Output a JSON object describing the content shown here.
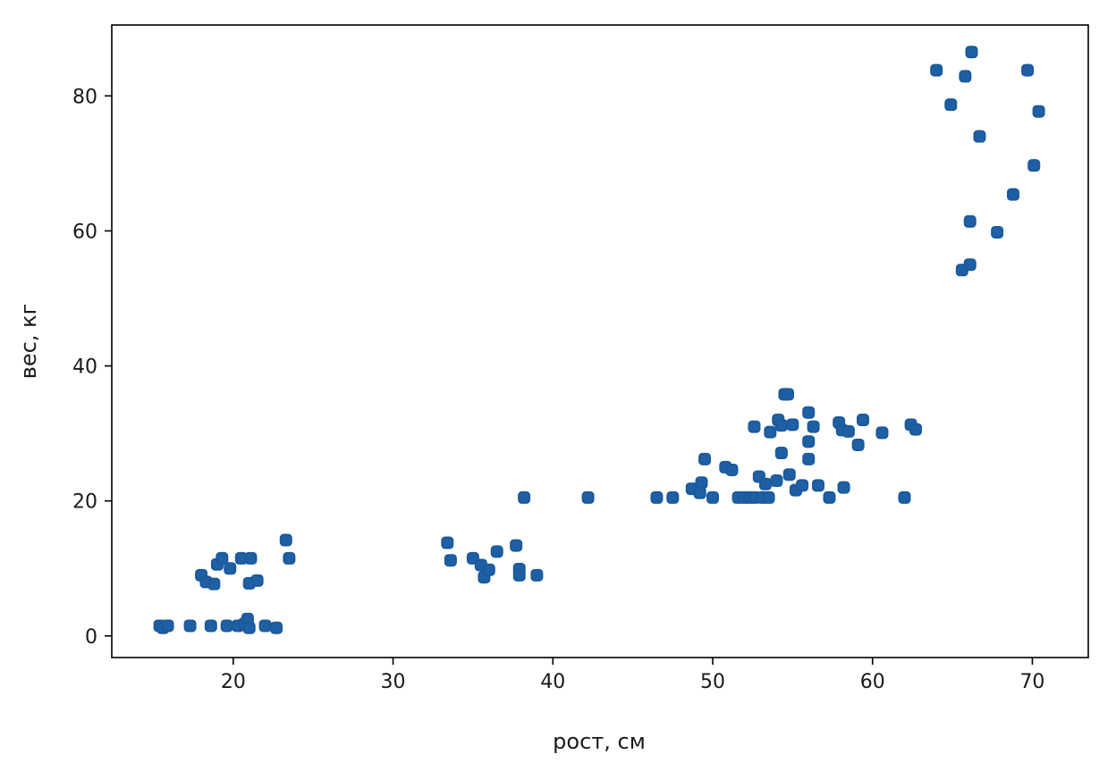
{
  "chart_data": {
    "type": "scatter",
    "title": "",
    "xlabel": "рост, см",
    "ylabel": "вес, кг",
    "xlim": [
      12.4,
      73.5
    ],
    "ylim": [
      -3.2,
      90.5
    ],
    "xticks": [
      20,
      30,
      40,
      50,
      60,
      70
    ],
    "yticks": [
      0,
      20,
      40,
      60,
      80
    ],
    "grid": false,
    "legend": "none",
    "series": [
      {
        "color": "#1f5fa3",
        "points": [
          [
            15.4,
            1.5
          ],
          [
            15.6,
            1.2
          ],
          [
            15.9,
            1.5
          ],
          [
            17.3,
            1.5
          ],
          [
            18.6,
            1.5
          ],
          [
            19.6,
            1.5
          ],
          [
            20.3,
            1.5
          ],
          [
            20.7,
            1.8
          ],
          [
            20.9,
            2.5
          ],
          [
            21.0,
            1.2
          ],
          [
            22.0,
            1.5
          ],
          [
            22.7,
            1.2
          ],
          [
            18.0,
            9.0
          ],
          [
            18.3,
            8.0
          ],
          [
            18.8,
            7.7
          ],
          [
            19.0,
            10.6
          ],
          [
            19.3,
            11.5
          ],
          [
            19.8,
            10.0
          ],
          [
            20.5,
            11.5
          ],
          [
            21.0,
            7.8
          ],
          [
            21.1,
            11.5
          ],
          [
            21.5,
            8.2
          ],
          [
            23.3,
            14.2
          ],
          [
            23.5,
            11.5
          ],
          [
            33.4,
            13.8
          ],
          [
            33.6,
            11.2
          ],
          [
            35.0,
            11.5
          ],
          [
            35.5,
            10.5
          ],
          [
            35.7,
            8.7
          ],
          [
            36.0,
            9.8
          ],
          [
            36.5,
            12.5
          ],
          [
            37.7,
            13.4
          ],
          [
            37.9,
            9.9
          ],
          [
            37.9,
            9.0
          ],
          [
            38.2,
            20.5
          ],
          [
            39.0,
            9.0
          ],
          [
            42.2,
            20.5
          ],
          [
            46.5,
            20.5
          ],
          [
            47.5,
            20.5
          ],
          [
            48.7,
            21.8
          ],
          [
            49.2,
            21.2
          ],
          [
            49.3,
            22.7
          ],
          [
            49.5,
            26.2
          ],
          [
            50.0,
            20.5
          ],
          [
            50.8,
            25.0
          ],
          [
            51.2,
            24.6
          ],
          [
            51.6,
            20.5
          ],
          [
            52.0,
            20.5
          ],
          [
            52.3,
            20.5
          ],
          [
            52.6,
            20.5
          ],
          [
            52.6,
            31.0
          ],
          [
            52.9,
            23.6
          ],
          [
            53.1,
            20.5
          ],
          [
            53.3,
            22.5
          ],
          [
            53.5,
            20.5
          ],
          [
            53.6,
            30.2
          ],
          [
            54.0,
            23.0
          ],
          [
            54.1,
            32.0
          ],
          [
            54.3,
            31.2
          ],
          [
            54.3,
            27.1
          ],
          [
            54.5,
            35.8
          ],
          [
            54.7,
            35.8
          ],
          [
            54.8,
            23.9
          ],
          [
            55.0,
            31.3
          ],
          [
            55.2,
            21.6
          ],
          [
            55.6,
            22.3
          ],
          [
            56.0,
            33.1
          ],
          [
            56.0,
            28.8
          ],
          [
            56.0,
            26.2
          ],
          [
            56.3,
            31.0
          ],
          [
            56.6,
            22.3
          ],
          [
            57.3,
            20.5
          ],
          [
            57.9,
            31.6
          ],
          [
            58.1,
            30.5
          ],
          [
            58.2,
            22.0
          ],
          [
            58.5,
            30.3
          ],
          [
            59.1,
            28.3
          ],
          [
            59.4,
            32.0
          ],
          [
            60.6,
            30.1
          ],
          [
            62.0,
            20.5
          ],
          [
            62.4,
            31.3
          ],
          [
            62.7,
            30.6
          ],
          [
            64.0,
            83.8
          ],
          [
            64.9,
            78.7
          ],
          [
            65.6,
            54.2
          ],
          [
            65.8,
            82.9
          ],
          [
            66.1,
            55.0
          ],
          [
            66.1,
            61.4
          ],
          [
            66.2,
            86.5
          ],
          [
            66.7,
            74.0
          ],
          [
            67.8,
            59.8
          ],
          [
            68.8,
            65.4
          ],
          [
            69.7,
            83.8
          ],
          [
            70.1,
            69.7
          ],
          [
            70.4,
            77.7
          ]
        ]
      }
    ]
  }
}
